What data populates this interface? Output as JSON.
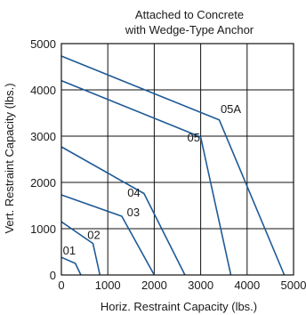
{
  "chart_data": {
    "type": "line",
    "title_lines": [
      "Attached to Concrete",
      "with Wedge-Type Anchor"
    ],
    "xlabel": "Horiz. Restraint Capacity (lbs.)",
    "ylabel": "Vert. Restraint Capacity (lbs.)",
    "xlim": [
      0,
      5000
    ],
    "ylim": [
      0,
      5000
    ],
    "xticks": [
      "0",
      "1000",
      "2000",
      "3000",
      "4000",
      "5000"
    ],
    "yticks": [
      "0",
      "1000",
      "2000",
      "3000",
      "4000",
      "5000"
    ],
    "grid": true,
    "series_color": "#1f5a96",
    "series": [
      {
        "name": "01",
        "label_at": [
          170,
          440
        ],
        "points": [
          [
            0,
            380
          ],
          [
            300,
            250
          ],
          [
            420,
            0
          ]
        ]
      },
      {
        "name": "02",
        "label_at": [
          700,
          780
        ],
        "points": [
          [
            0,
            1150
          ],
          [
            680,
            680
          ],
          [
            830,
            0
          ]
        ]
      },
      {
        "name": "03",
        "label_at": [
          1550,
          1270
        ],
        "points": [
          [
            0,
            1730
          ],
          [
            1300,
            1270
          ],
          [
            2000,
            0
          ]
        ]
      },
      {
        "name": "04",
        "label_at": [
          1560,
          1690
        ],
        "points": [
          [
            0,
            2770
          ],
          [
            1780,
            1760
          ],
          [
            2660,
            0
          ]
        ]
      },
      {
        "name": "05",
        "label_at": [
          2850,
          2880
        ],
        "points": [
          [
            0,
            4200
          ],
          [
            3000,
            2980
          ],
          [
            3650,
            0
          ]
        ]
      },
      {
        "name": "05A",
        "label_at": [
          3650,
          3500
        ],
        "points": [
          [
            0,
            4730
          ],
          [
            3400,
            3350
          ],
          [
            4800,
            0
          ]
        ]
      }
    ]
  }
}
